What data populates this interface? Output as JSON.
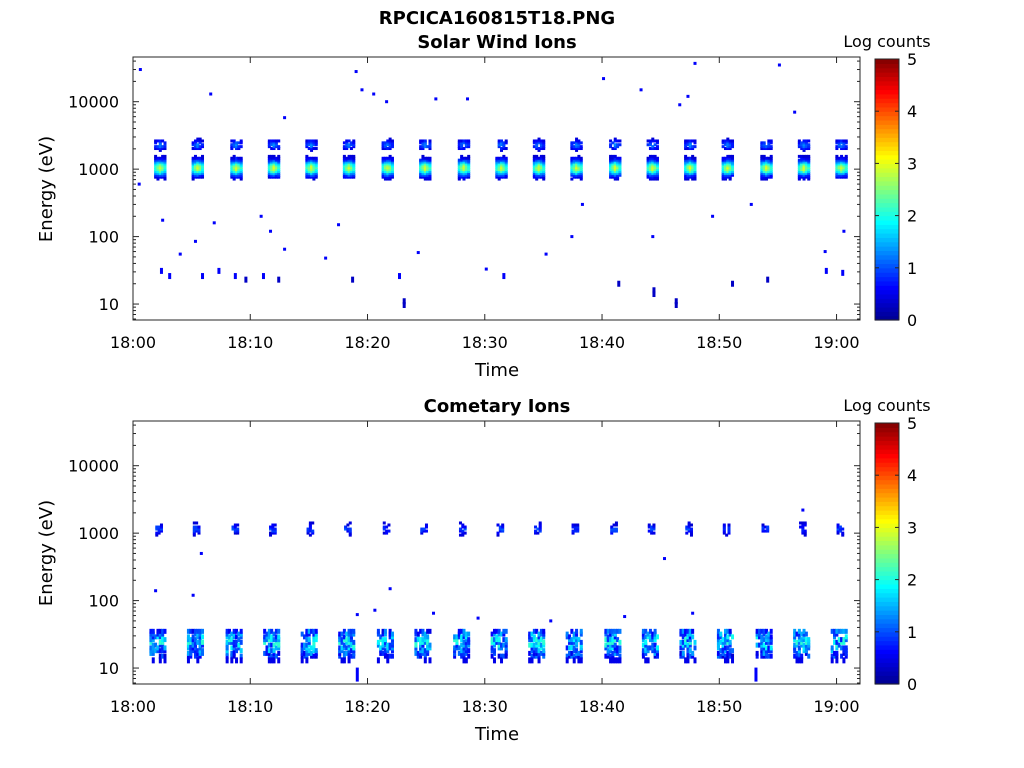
{
  "figure": {
    "title": "RPCICA160815T18.PNG"
  },
  "colors": {
    "colormap": [
      "#00008f",
      "#0000ff",
      "#0080ff",
      "#00ffff",
      "#80ff80",
      "#ffff00",
      "#ff8000",
      "#ff0000",
      "#800000"
    ]
  },
  "chart_data": [
    {
      "type": "heatmap",
      "title": "Solar Wind Ions",
      "xlabel": "Time",
      "ylabel": "Energy (eV)",
      "x_ticks": [
        "18:00",
        "18:10",
        "18:20",
        "18:30",
        "18:40",
        "18:50",
        "19:00"
      ],
      "x_range_minutes": [
        0,
        62
      ],
      "y_scale": "log",
      "y_ticks": [
        10,
        100,
        1000,
        10000
      ],
      "y_range": [
        5.8,
        46000
      ],
      "colorbar": {
        "label": "Log counts",
        "ticks": [
          0,
          1,
          2,
          3,
          4,
          5
        ],
        "range": [
          0,
          5
        ]
      },
      "description_points": {
        "sweep_minutes": [
          2.2,
          5.4,
          8.7,
          11.9,
          15.1,
          18.3,
          21.6,
          24.8,
          28.1,
          31.3,
          34.5,
          37.7,
          41.0,
          44.2,
          47.4,
          50.6,
          53.9,
          57.1,
          60.3
        ],
        "main_peak_eV": 1050,
        "main_peak_level": 2.8,
        "secondary_peak_eV": 2300,
        "secondary_peak_level": 1.2,
        "low_energy_hits": [
          {
            "t": 2.3,
            "e": 31,
            "v": 0.6
          },
          {
            "t": 3.0,
            "e": 26,
            "v": 0.6
          },
          {
            "t": 5.8,
            "e": 26,
            "v": 0.6
          },
          {
            "t": 7.2,
            "e": 31,
            "v": 0.6
          },
          {
            "t": 8.6,
            "e": 26,
            "v": 0.6
          },
          {
            "t": 9.5,
            "e": 23,
            "v": 0.3
          },
          {
            "t": 11.0,
            "e": 26,
            "v": 0.6
          },
          {
            "t": 12.3,
            "e": 23,
            "v": 0.3
          },
          {
            "t": 18.6,
            "e": 23,
            "v": 0.3
          },
          {
            "t": 22.6,
            "e": 26,
            "v": 0.6
          },
          {
            "t": 23.0,
            "e": 11,
            "v": 0.3
          },
          {
            "t": 31.5,
            "e": 26,
            "v": 0.6
          },
          {
            "t": 41.3,
            "e": 20,
            "v": 0.3
          },
          {
            "t": 44.3,
            "e": 16,
            "v": 0.3
          },
          {
            "t": 46.2,
            "e": 11,
            "v": 0.3
          },
          {
            "t": 51.0,
            "e": 20,
            "v": 0.3
          },
          {
            "t": 54.0,
            "e": 23,
            "v": 0.3
          },
          {
            "t": 59.0,
            "e": 31,
            "v": 0.6
          },
          {
            "t": 60.4,
            "e": 29,
            "v": 0.6
          }
        ],
        "sparse_hits": [
          {
            "t": 0.5,
            "e": 30000
          },
          {
            "t": 0.4,
            "e": 600
          },
          {
            "t": 2.4,
            "e": 175
          },
          {
            "t": 3.9,
            "e": 55
          },
          {
            "t": 5.2,
            "e": 85
          },
          {
            "t": 6.5,
            "e": 13000
          },
          {
            "t": 6.8,
            "e": 160
          },
          {
            "t": 10.8,
            "e": 200
          },
          {
            "t": 11.6,
            "e": 120
          },
          {
            "t": 12.8,
            "e": 65
          },
          {
            "t": 12.8,
            "e": 5800
          },
          {
            "t": 16.3,
            "e": 48
          },
          {
            "t": 17.4,
            "e": 150
          },
          {
            "t": 18.9,
            "e": 28000
          },
          {
            "t": 19.4,
            "e": 15000
          },
          {
            "t": 20.4,
            "e": 13000
          },
          {
            "t": 21.5,
            "e": 10000
          },
          {
            "t": 24.2,
            "e": 58
          },
          {
            "t": 25.7,
            "e": 11000
          },
          {
            "t": 28.4,
            "e": 11000
          },
          {
            "t": 30.0,
            "e": 33
          },
          {
            "t": 35.1,
            "e": 55
          },
          {
            "t": 37.3,
            "e": 100
          },
          {
            "t": 38.2,
            "e": 300
          },
          {
            "t": 40.0,
            "e": 22000
          },
          {
            "t": 43.2,
            "e": 15000
          },
          {
            "t": 44.2,
            "e": 100
          },
          {
            "t": 46.5,
            "e": 9000
          },
          {
            "t": 47.2,
            "e": 12000
          },
          {
            "t": 47.8,
            "e": 37000
          },
          {
            "t": 49.3,
            "e": 200
          },
          {
            "t": 52.6,
            "e": 300
          },
          {
            "t": 55.0,
            "e": 35000
          },
          {
            "t": 56.3,
            "e": 7000
          },
          {
            "t": 58.9,
            "e": 60
          },
          {
            "t": 60.5,
            "e": 120
          }
        ]
      }
    },
    {
      "type": "heatmap",
      "title": "Cometary Ions",
      "xlabel": "Time",
      "ylabel": "Energy (eV)",
      "x_ticks": [
        "18:00",
        "18:10",
        "18:20",
        "18:30",
        "18:40",
        "18:50",
        "19:00"
      ],
      "x_range_minutes": [
        0,
        62
      ],
      "y_scale": "log",
      "y_ticks": [
        10,
        100,
        1000,
        10000
      ],
      "y_range": [
        5.8,
        46000
      ],
      "colorbar": {
        "label": "Log counts",
        "ticks": [
          0,
          1,
          2,
          3,
          4,
          5
        ],
        "range": [
          0,
          5
        ]
      },
      "description_points": {
        "sweep_minutes": [
          2.2,
          5.4,
          8.7,
          11.9,
          15.1,
          18.3,
          21.6,
          24.8,
          28.1,
          31.3,
          34.5,
          37.7,
          41.0,
          44.2,
          47.4,
          50.6,
          53.9,
          57.1,
          60.3
        ],
        "upper_band_eV": 1150,
        "upper_band_level": 0.7,
        "low_band_eV_range": [
          15,
          35
        ],
        "low_band_peak_level": 1.9,
        "sparse_hits": [
          {
            "t": 1.8,
            "e": 140
          },
          {
            "t": 5.0,
            "e": 120
          },
          {
            "t": 5.7,
            "e": 500
          },
          {
            "t": 19.0,
            "e": 62
          },
          {
            "t": 20.5,
            "e": 72
          },
          {
            "t": 21.8,
            "e": 150
          },
          {
            "t": 25.5,
            "e": 65
          },
          {
            "t": 29.3,
            "e": 55
          },
          {
            "t": 35.5,
            "e": 50
          },
          {
            "t": 41.8,
            "e": 58
          },
          {
            "t": 45.2,
            "e": 420
          },
          {
            "t": 47.6,
            "e": 65
          },
          {
            "t": 57.0,
            "e": 2200
          },
          {
            "t": 53.0,
            "e": 8
          },
          {
            "t": 19.0,
            "e": 8
          }
        ]
      }
    }
  ]
}
